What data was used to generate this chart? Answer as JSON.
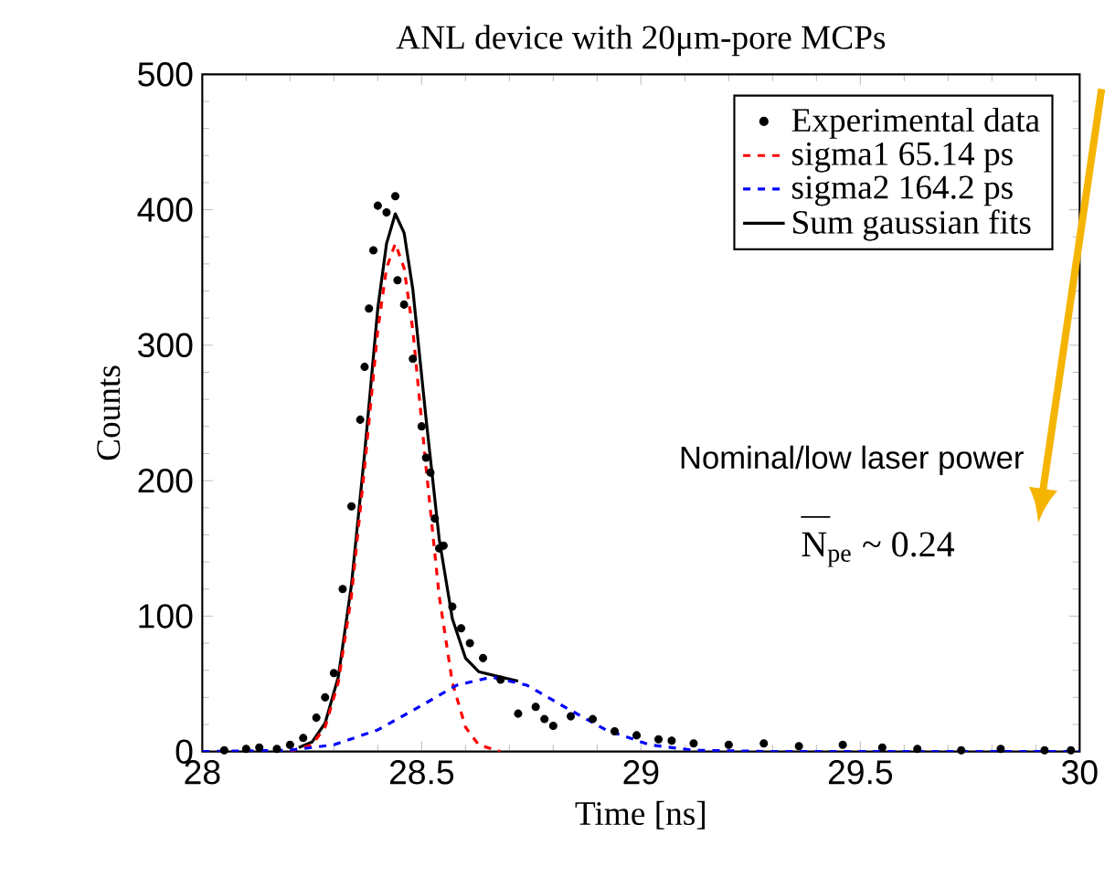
{
  "chart_data": {
    "type": "line",
    "title": "ANL device  with 20μm-pore  MCPs",
    "xlabel": "Time [ns]",
    "ylabel": "Counts",
    "xlim": [
      28,
      30
    ],
    "ylim": [
      0,
      500
    ],
    "xticks": [
      28,
      28.5,
      29,
      29.5,
      30
    ],
    "yticks": [
      0,
      100,
      200,
      300,
      400,
      500
    ],
    "grid": false,
    "legend": "top right",
    "annotations": [
      "Nominal/low laser power",
      "N$_{pe}$ ~ 0.24"
    ],
    "series": [
      {
        "name": "Experimental data",
        "type": "scatter",
        "marker": "circle",
        "color": "#000000",
        "x": [
          28.05,
          28.1,
          28.13,
          28.17,
          28.2,
          28.23,
          28.26,
          28.28,
          28.3,
          28.32,
          28.34,
          28.36,
          28.37,
          28.38,
          28.39,
          28.4,
          28.42,
          28.44,
          28.445,
          28.46,
          28.48,
          28.5,
          28.51,
          28.52,
          28.53,
          28.54,
          28.55,
          28.57,
          28.59,
          28.61,
          28.64,
          28.68,
          28.72,
          28.76,
          28.78,
          28.8,
          28.84,
          28.89,
          28.94,
          28.99,
          29.04,
          29.07,
          29.12,
          29.2,
          29.28,
          29.36,
          29.46,
          29.55,
          29.63,
          29.73,
          29.82,
          29.92,
          29.98
        ],
        "values": [
          1,
          2,
          3,
          2,
          5,
          10,
          25,
          40,
          58,
          120,
          181,
          245,
          284,
          327,
          370,
          403,
          398,
          410,
          348,
          330,
          290,
          240,
          217,
          206,
          172,
          150,
          152,
          107,
          91,
          80,
          69,
          53,
          28,
          33,
          24,
          19,
          26,
          24,
          15,
          12,
          9,
          8,
          6,
          5,
          6,
          4,
          5,
          3,
          2,
          1,
          2,
          1,
          1
        ]
      },
      {
        "name": "sigma1    65.14 ps",
        "line_style": "dashed",
        "color": "#ff0000",
        "x": [
          28.2,
          28.25,
          28.28,
          28.31,
          28.34,
          28.37,
          28.4,
          28.42,
          28.44,
          28.46,
          28.48,
          28.51,
          28.54,
          28.57,
          28.6,
          28.63,
          28.68
        ],
        "values": [
          0,
          5,
          18,
          51,
          115,
          210,
          311,
          357,
          375,
          357,
          311,
          210,
          115,
          51,
          18,
          5,
          0
        ]
      },
      {
        "name": "sigma2    164.2 ps",
        "line_style": "dashed",
        "color": "#0000ff",
        "x": [
          28.0,
          28.2,
          28.3,
          28.4,
          28.5,
          28.58,
          28.66,
          28.74,
          28.82,
          28.92,
          29.02,
          29.12,
          29.3,
          30.0
        ],
        "values": [
          0,
          1,
          5,
          16,
          34,
          49,
          55,
          49,
          34,
          16,
          5,
          1,
          0,
          0
        ]
      },
      {
        "name": "Sum gaussian fits",
        "line_style": "solid",
        "color": "#000000",
        "x": [
          28.22,
          28.25,
          28.28,
          28.31,
          28.34,
          28.37,
          28.4,
          28.42,
          28.44,
          28.46,
          28.48,
          28.51,
          28.54,
          28.57,
          28.6,
          28.63,
          28.68,
          28.72
        ],
        "values": [
          3,
          7,
          21,
          55,
          123,
          220,
          327,
          375,
          397,
          383,
          341,
          246,
          157,
          98,
          69,
          59,
          55,
          52
        ]
      }
    ]
  }
}
